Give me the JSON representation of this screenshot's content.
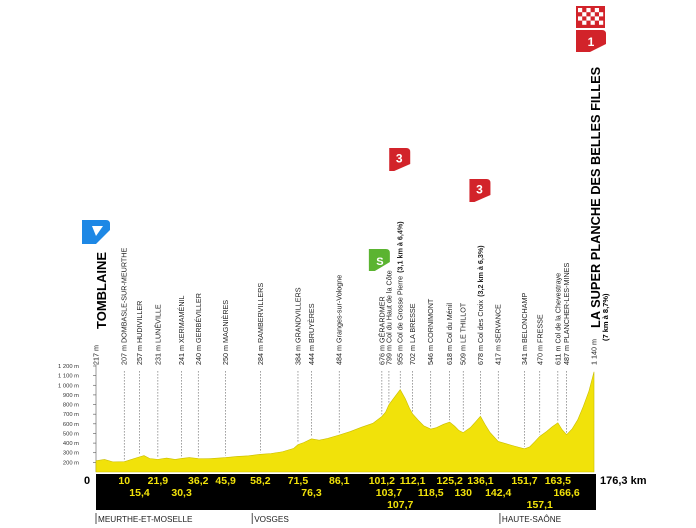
{
  "y_axis": {
    "ticks": [
      "1 200 m",
      "1 100 m",
      "1 000 m",
      "900 m",
      "800 m",
      "700 m",
      "600 m",
      "500 m",
      "400 m",
      "300 m",
      "200 m"
    ],
    "tick_values": [
      1200,
      1100,
      1000,
      900,
      800,
      700,
      600,
      500,
      400,
      300,
      200
    ]
  },
  "start": {
    "label": "0",
    "name": "TOMBLAINE",
    "altitude": "217 m",
    "km": 0,
    "alt": 217
  },
  "finish": {
    "distance_label": "176,3 km",
    "name": "LA SUPER PLANCHE DES BELLES FILLES",
    "subtitle": "(7 km à 8,7%)",
    "altitude": "1 140 m",
    "km": 176.3,
    "alt": 1140,
    "climb_category": "1"
  },
  "waypoints": [
    {
      "km": 10,
      "km_label": "10",
      "row": 1,
      "name": "207 m DOMBASLE-SUR-MEURTHE",
      "alt": 207
    },
    {
      "km": 15.4,
      "km_label": "15,4",
      "row": 2,
      "name": "257 m HUDIVILLER",
      "alt": 257
    },
    {
      "km": 21.9,
      "km_label": "21,9",
      "row": 1,
      "name": "231 m LUNÉVILLE",
      "alt": 231
    },
    {
      "km": 30.3,
      "km_label": "30,3",
      "row": 2,
      "name": "241 m XERMAMÉNIL",
      "alt": 241
    },
    {
      "km": 36.2,
      "km_label": "36,2",
      "row": 1,
      "name": "240 m GERBÉVILLER",
      "alt": 240
    },
    {
      "km": 45.9,
      "km_label": "45,9",
      "row": 1,
      "name": "250 m MAGNIÈRES",
      "alt": 250
    },
    {
      "km": 58.2,
      "km_label": "58,2",
      "row": 1,
      "name": "284 m RAMBERVILLERS",
      "alt": 284
    },
    {
      "km": 71.5,
      "km_label": "71,5",
      "row": 1,
      "name": "384 m GRANDVILLERS",
      "alt": 384
    },
    {
      "km": 76.3,
      "km_label": "76,3",
      "row": 2,
      "name": "444 m BRUYÈRES",
      "alt": 444
    },
    {
      "km": 86.1,
      "km_label": "86,1",
      "row": 1,
      "name": "484 m Granges-sur-Vologne",
      "alt": 484
    },
    {
      "km": 101.2,
      "km_label": "101,2",
      "row": 1,
      "name": "676 m GÉRARDMER",
      "alt": 676,
      "sprint": "S"
    },
    {
      "km": 103.7,
      "km_label": "103,7",
      "row": 2,
      "name": "799 m Col du Haut de la Côte",
      "alt": 799
    },
    {
      "km": 107.7,
      "km_label": "107,7",
      "row": 3,
      "name": "955 m Col de Grosse Pierre",
      "climb": "(3,1 km à 6,4%)",
      "alt": 955,
      "climb_category": "3"
    },
    {
      "km": 112.1,
      "km_label": "112,1",
      "row": 1,
      "name": "702 m LA BRESSE",
      "alt": 702
    },
    {
      "km": 118.5,
      "km_label": "118,5",
      "row": 2,
      "name": "546 m CORNIMONT",
      "alt": 546
    },
    {
      "km": 125.2,
      "km_label": "125,2",
      "row": 1,
      "name": "618 m Col du Ménil",
      "alt": 618
    },
    {
      "km": 130,
      "km_label": "130",
      "row": 2,
      "name": "509 m LE THILLOT",
      "alt": 509
    },
    {
      "km": 136.1,
      "km_label": "136,1",
      "row": 1,
      "name": "678 m Col des Croix",
      "climb": "(3,2 km à 6,3%)",
      "alt": 678,
      "climb_category": "3"
    },
    {
      "km": 142.4,
      "km_label": "142,4",
      "row": 2,
      "name": "417 m SERVANCE",
      "alt": 417
    },
    {
      "km": 151.7,
      "km_label": "151,7",
      "row": 1,
      "name": "341 m BELONCHAMP",
      "alt": 341
    },
    {
      "km": 157.1,
      "km_label": "157,1",
      "row": 3,
      "name": "470 m FRESSE",
      "alt": 470
    },
    {
      "km": 163.5,
      "km_label": "163,5",
      "row": 1,
      "name": "611 m Col de la Chevestraye",
      "alt": 611
    },
    {
      "km": 166.6,
      "km_label": "166,6",
      "row": 2,
      "name": "487 m PLANCHER-LES-MINES",
      "alt": 487
    }
  ],
  "regions": [
    {
      "name": "MEURTHE-ET-MOSELLE",
      "km": 0
    },
    {
      "name": "VOSGES",
      "km": 55.3
    },
    {
      "name": "HAUTE-SAÔNE",
      "km": 143
    }
  ],
  "profile": [
    [
      0,
      217
    ],
    [
      3,
      230
    ],
    [
      6,
      205
    ],
    [
      10,
      207
    ],
    [
      12,
      225
    ],
    [
      15.4,
      257
    ],
    [
      17,
      270
    ],
    [
      19,
      240
    ],
    [
      21.9,
      231
    ],
    [
      25,
      245
    ],
    [
      28,
      230
    ],
    [
      30.3,
      241
    ],
    [
      33,
      250
    ],
    [
      36.2,
      240
    ],
    [
      40,
      238
    ],
    [
      45.9,
      250
    ],
    [
      50,
      262
    ],
    [
      54,
      268
    ],
    [
      58.2,
      284
    ],
    [
      62,
      292
    ],
    [
      66,
      310
    ],
    [
      70,
      345
    ],
    [
      71.5,
      384
    ],
    [
      73.5,
      405
    ],
    [
      76.3,
      444
    ],
    [
      79,
      430
    ],
    [
      82,
      448
    ],
    [
      86.1,
      484
    ],
    [
      90,
      520
    ],
    [
      94,
      565
    ],
    [
      98,
      605
    ],
    [
      101.2,
      676
    ],
    [
      102.5,
      720
    ],
    [
      103.7,
      799
    ],
    [
      105.5,
      870
    ],
    [
      107.7,
      955
    ],
    [
      109.5,
      860
    ],
    [
      111,
      760
    ],
    [
      112.1,
      702
    ],
    [
      114,
      640
    ],
    [
      116,
      580
    ],
    [
      118.5,
      546
    ],
    [
      120.5,
      560
    ],
    [
      123,
      595
    ],
    [
      125.2,
      618
    ],
    [
      127,
      575
    ],
    [
      128.5,
      530
    ],
    [
      130,
      509
    ],
    [
      132.5,
      560
    ],
    [
      134.5,
      625
    ],
    [
      136.1,
      678
    ],
    [
      137.8,
      590
    ],
    [
      139.5,
      510
    ],
    [
      142.4,
      417
    ],
    [
      145,
      395
    ],
    [
      148,
      370
    ],
    [
      151.7,
      341
    ],
    [
      153.5,
      360
    ],
    [
      155.5,
      420
    ],
    [
      157.1,
      470
    ],
    [
      159.5,
      520
    ],
    [
      161.5,
      570
    ],
    [
      163.5,
      611
    ],
    [
      165,
      540
    ],
    [
      166.6,
      487
    ],
    [
      168.5,
      545
    ],
    [
      170.5,
      640
    ],
    [
      172.5,
      780
    ],
    [
      174.5,
      940
    ],
    [
      176.3,
      1140
    ]
  ],
  "colors": {
    "profile_fill": "#f1e20a",
    "bar": "#000000",
    "bar_text": "#f1e20a",
    "climb_marker": "#d2232a",
    "sprint_marker": "#5bb431",
    "start_marker": "#1e88e5"
  }
}
